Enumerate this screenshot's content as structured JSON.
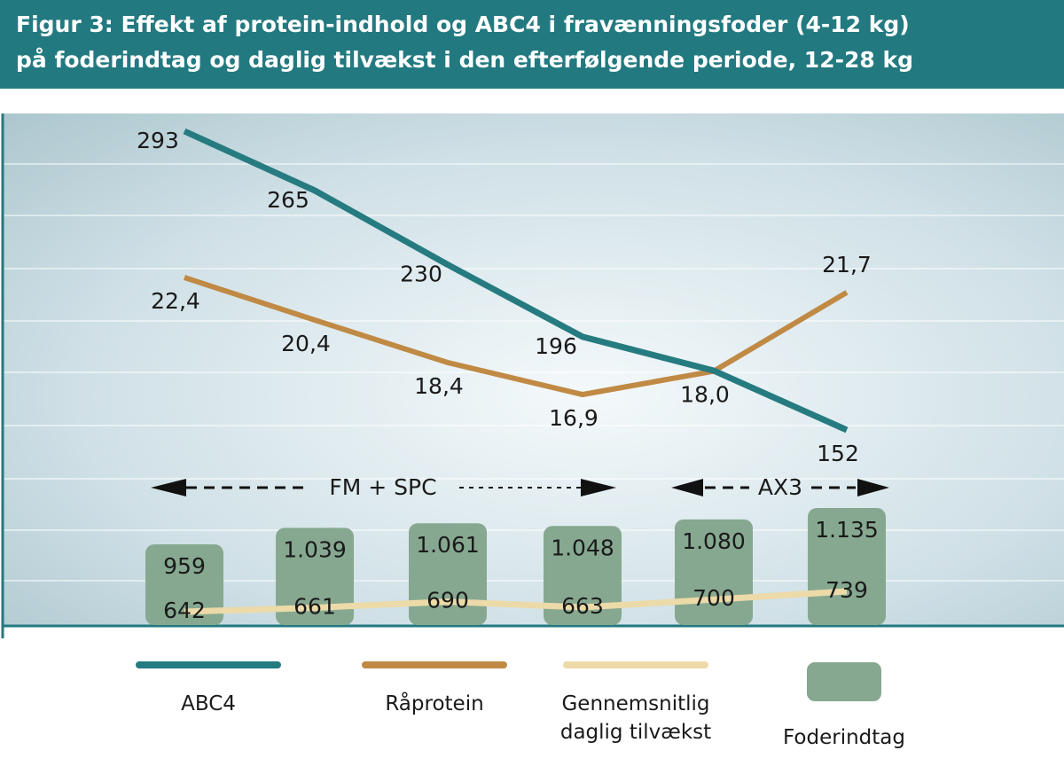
{
  "chart_data": {
    "type": "line",
    "title": [
      "Figur 3: Effekt af protein-indhold og ABC4 i fravænningsfoder (4-12 kg)",
      "på foderindtag og daglig tilvækst i den efterfølgende periode, 12-28 kg"
    ],
    "annotations": [
      "FM + SPC",
      "AX3"
    ],
    "series": [
      {
        "name": "ABC4",
        "type": "line",
        "color": "#267b80",
        "values": [
          293,
          265,
          230,
          196,
          180,
          152
        ]
      },
      {
        "name": "Råprotein",
        "type": "line",
        "color": "#c08a45",
        "values": [
          22.4,
          20.4,
          18.4,
          16.9,
          18.0,
          21.7
        ],
        "value_labels": [
          "22,4",
          "20,4",
          "18,4",
          "16,9",
          "18,0",
          "21,7"
        ]
      },
      {
        "name": "Gennemsnitlig daglig tilvækst",
        "type": "line",
        "color": "#ecdaa8",
        "values": [
          642,
          661,
          690,
          663,
          700,
          739
        ]
      },
      {
        "name": "Foderindtag",
        "type": "bar",
        "color": "#86a890",
        "values": [
          959,
          1039,
          1061,
          1048,
          1080,
          1135
        ],
        "value_labels": [
          "959",
          "1.039",
          "1.061",
          "1.048",
          "1.080",
          "1.135"
        ]
      }
    ]
  }
}
